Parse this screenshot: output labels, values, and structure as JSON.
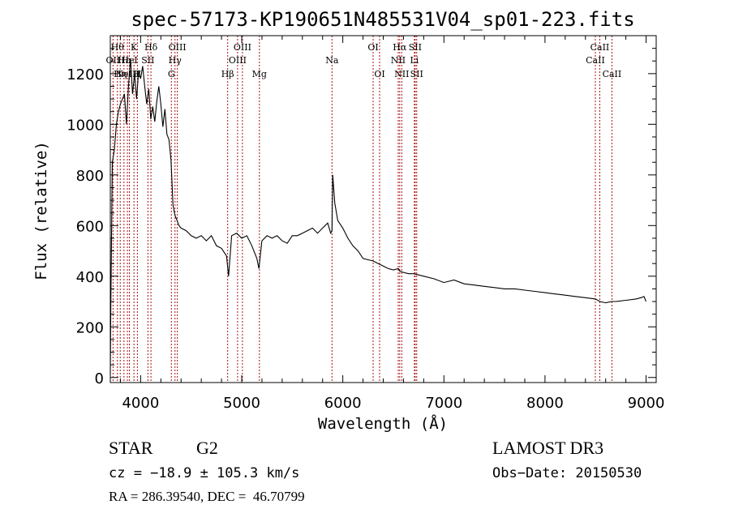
{
  "chart_data": {
    "type": "line",
    "title": "spec-57173-KP190651N485531V04_sp01-223.fits",
    "xlabel": "Wavelength (Å)",
    "ylabel": "Flux (relative)",
    "xlim": [
      3700,
      9100
    ],
    "ylim": [
      -20,
      1350
    ],
    "xticks": [
      4000,
      5000,
      6000,
      7000,
      8000,
      9000
    ],
    "yticks": [
      0,
      200,
      400,
      600,
      800,
      1000,
      1200
    ],
    "grid": false,
    "line_color": "#000000",
    "marker_color": "#aa1111",
    "series": [
      {
        "x": [
          3700,
          3705,
          3720,
          3740,
          3760,
          3780,
          3800,
          3820,
          3840,
          3860,
          3880,
          3900,
          3920,
          3940,
          3960,
          3980,
          4000,
          4020,
          4040,
          4060,
          4080,
          4100,
          4120,
          4140,
          4160,
          4180,
          4200,
          4220,
          4240,
          4260,
          4280,
          4300,
          4320,
          4340,
          4360,
          4380,
          4400,
          4450,
          4500,
          4550,
          4600,
          4650,
          4700,
          4750,
          4800,
          4850,
          4870,
          4900,
          4950,
          5000,
          5050,
          5100,
          5150,
          5170,
          5200,
          5250,
          5300,
          5350,
          5400,
          5450,
          5500,
          5550,
          5600,
          5650,
          5700,
          5750,
          5800,
          5850,
          5880,
          5893,
          5900,
          5920,
          5950,
          6000,
          6050,
          6100,
          6150,
          6200,
          6250,
          6300,
          6350,
          6400,
          6450,
          6500,
          6550,
          6563,
          6600,
          6650,
          6700,
          6750,
          6800,
          6900,
          7000,
          7100,
          7200,
          7300,
          7400,
          7500,
          7600,
          7700,
          7800,
          7900,
          8000,
          8100,
          8200,
          8300,
          8400,
          8500,
          8542,
          8600,
          8662,
          8700,
          8800,
          8900,
          8950,
          8980,
          9000
        ],
        "y": [
          10,
          280,
          850,
          900,
          1000,
          1050,
          1080,
          1100,
          1120,
          1000,
          1150,
          1260,
          1120,
          1200,
          1100,
          1210,
          1180,
          1230,
          1150,
          1080,
          1140,
          1020,
          1070,
          1010,
          1090,
          1150,
          1080,
          990,
          1060,
          960,
          940,
          860,
          680,
          640,
          620,
          600,
          590,
          580,
          560,
          550,
          560,
          540,
          560,
          520,
          510,
          480,
          400,
          560,
          570,
          550,
          560,
          520,
          470,
          430,
          540,
          560,
          550,
          560,
          540,
          530,
          560,
          560,
          570,
          580,
          590,
          570,
          590,
          610,
          570,
          580,
          800,
          690,
          620,
          590,
          550,
          520,
          500,
          470,
          465,
          460,
          450,
          440,
          430,
          425,
          430,
          420,
          415,
          410,
          410,
          405,
          400,
          390,
          375,
          385,
          370,
          365,
          360,
          355,
          350,
          350,
          345,
          340,
          335,
          330,
          325,
          320,
          315,
          310,
          300,
          295,
          300,
          300,
          305,
          310,
          315,
          320,
          300
        ]
      }
    ],
    "line_markers": [
      {
        "w": 3727,
        "label": "OII",
        "row": 2
      },
      {
        "w": 3770,
        "label": "Hθ",
        "row": 1
      },
      {
        "w": 3798,
        "label": "Hη",
        "row": 3
      },
      {
        "w": 3835,
        "label": "Hε",
        "row": 2
      },
      {
        "w": 3869,
        "label": "NeIII",
        "row": 3
      },
      {
        "w": 3889,
        "label": "HeI",
        "row": 2
      },
      {
        "w": 3934,
        "label": "K",
        "row": 1
      },
      {
        "w": 3968,
        "label": "H",
        "row": 3
      },
      {
        "w": 4072,
        "label": "SII",
        "row": 2
      },
      {
        "w": 4102,
        "label": "Hδ",
        "row": 1
      },
      {
        "w": 4304,
        "label": "G",
        "row": 3
      },
      {
        "w": 4340,
        "label": "Hγ",
        "row": 2
      },
      {
        "w": 4363,
        "label": "OIII",
        "row": 1
      },
      {
        "w": 4861,
        "label": "Hβ",
        "row": 3
      },
      {
        "w": 4959,
        "label": "OIII",
        "row": 2
      },
      {
        "w": 5007,
        "label": "OIII",
        "row": 1
      },
      {
        "w": 5175,
        "label": "Mg",
        "row": 3
      },
      {
        "w": 5893,
        "label": "Na",
        "row": 2
      },
      {
        "w": 6300,
        "label": "OI",
        "row": 1
      },
      {
        "w": 6364,
        "label": "OI",
        "row": 3
      },
      {
        "w": 6548,
        "label": "NII",
        "row": 2
      },
      {
        "w": 6563,
        "label": "Hα",
        "row": 1
      },
      {
        "w": 6583,
        "label": "NII",
        "row": 3
      },
      {
        "w": 6708,
        "label": "Li",
        "row": 2
      },
      {
        "w": 6716,
        "label": "SII",
        "row": 1
      },
      {
        "w": 6731,
        "label": "SII",
        "row": 3
      },
      {
        "w": 8498,
        "label": "CaII",
        "row": 2
      },
      {
        "w": 8542,
        "label": "CaII",
        "row": 1
      },
      {
        "w": 8662,
        "label": "CaII",
        "row": 3
      }
    ]
  },
  "info": {
    "object_type": "STAR",
    "object_class": "G2",
    "survey": "LAMOST DR3",
    "cz": "cz = −18.9 ± 105.3 km/s",
    "obs_date": "Obs−Date: 20150530",
    "radec": "RA = 286.39540, DEC =  46.70799"
  }
}
